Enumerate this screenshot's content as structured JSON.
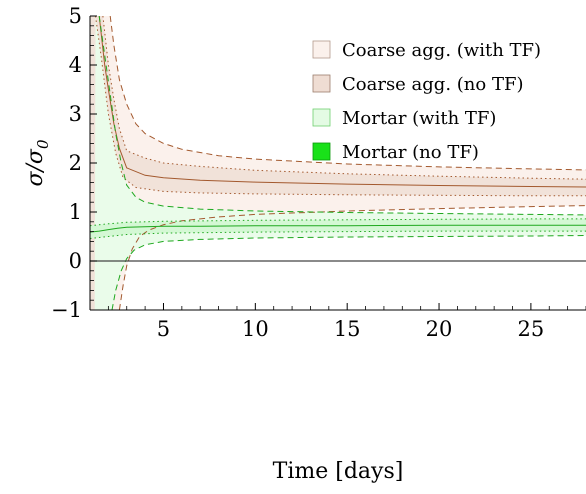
{
  "chart_data": {
    "type": "line",
    "title": "",
    "xlabel": "Time [days]",
    "ylabel": "σ/σ",
    "ylabel_sub": "0",
    "xlim": [
      1,
      28
    ],
    "ylim": [
      -1,
      5
    ],
    "xticks": [
      5,
      10,
      15,
      20,
      25
    ],
    "yticks": [
      -1,
      0,
      1,
      2,
      3,
      4,
      5
    ],
    "grid": false,
    "legend_position": "top-right",
    "legend": [
      {
        "label": "Coarse agg. (with TF)",
        "fill": "#fbf1ec",
        "stroke": "#b39a8c"
      },
      {
        "label": "Coarse agg. (no TF)",
        "fill": "#efddd3",
        "stroke": "#9b7e6c"
      },
      {
        "label": "Mortar (with TF)",
        "fill": "#e4fbe4",
        "stroke": "#6fcf6f"
      },
      {
        "label": "Mortar (no TF)",
        "fill": "#19e119",
        "stroke": "#0a9a0a"
      }
    ],
    "colors": {
      "coarse_line": "#a3592e",
      "coarse_band_outer": "#fbf1ec",
      "coarse_band_inner": "#f1e2d9",
      "mortar_line": "#1fa81f",
      "mortar_band_outer": "#eafcea",
      "mortar_band_inner": "#d4f8d4"
    },
    "series": [
      {
        "key": "coarse_mean",
        "style": "solid",
        "color": "coarse",
        "x": [
          1.5,
          1.8,
          2.0,
          2.3,
          2.6,
          3.0,
          4,
          5,
          7,
          10,
          15,
          20,
          25,
          28
        ],
        "y": [
          5.0,
          4.0,
          3.5,
          2.8,
          2.3,
          1.9,
          1.75,
          1.7,
          1.65,
          1.61,
          1.57,
          1.54,
          1.52,
          1.51
        ]
      },
      {
        "key": "coarse_no_tf_upper",
        "style": "dotted",
        "color": "coarse",
        "x": [
          1.7,
          2.0,
          2.3,
          2.6,
          3.0,
          4,
          5,
          7,
          10,
          15,
          20,
          25,
          28
        ],
        "y": [
          5.0,
          4.0,
          3.3,
          2.7,
          2.25,
          2.1,
          2.0,
          1.93,
          1.85,
          1.78,
          1.73,
          1.69,
          1.67
        ]
      },
      {
        "key": "coarse_no_tf_lower",
        "style": "dotted",
        "color": "coarse",
        "x": [
          1.3,
          1.6,
          2.0,
          2.4,
          2.8,
          3.5,
          5,
          7,
          10,
          15,
          20,
          25,
          28
        ],
        "y": [
          5.0,
          4.2,
          3.0,
          2.2,
          1.7,
          1.5,
          1.42,
          1.39,
          1.37,
          1.35,
          1.34,
          1.33,
          1.33
        ]
      },
      {
        "key": "coarse_with_tf_upper",
        "style": "dashed",
        "color": "coarse",
        "x": [
          2.1,
          2.3,
          2.6,
          3.0,
          3.5,
          4,
          5,
          6,
          8,
          10,
          15,
          20,
          25,
          28
        ],
        "y": [
          5.0,
          4.4,
          3.7,
          3.2,
          2.8,
          2.6,
          2.4,
          2.28,
          2.15,
          2.08,
          1.98,
          1.92,
          1.88,
          1.86
        ]
      },
      {
        "key": "coarse_with_tf_lower",
        "style": "dashed",
        "color": "coarse",
        "x": [
          2.6,
          2.8,
          3.0,
          3.3,
          3.7,
          4.2,
          5,
          6,
          8,
          10,
          15,
          20,
          25,
          28
        ],
        "y": [
          -1.0,
          -0.5,
          -0.1,
          0.25,
          0.5,
          0.63,
          0.74,
          0.82,
          0.9,
          0.95,
          1.02,
          1.07,
          1.11,
          1.13
        ]
      },
      {
        "key": "mortar_mean",
        "style": "solid",
        "color": "mortar",
        "x": [
          1.0,
          1.5,
          2.0,
          2.5,
          3.0,
          4,
          5,
          7,
          10,
          15,
          20,
          25,
          28
        ],
        "y": [
          0.59,
          0.61,
          0.64,
          0.67,
          0.69,
          0.7,
          0.71,
          0.71,
          0.72,
          0.72,
          0.73,
          0.73,
          0.73
        ]
      },
      {
        "key": "mortar_no_tf_upper",
        "style": "dotted",
        "color": "mortar",
        "x": [
          1.0,
          2.0,
          3.0,
          5,
          10,
          15,
          20,
          25,
          28
        ],
        "y": [
          0.72,
          0.76,
          0.79,
          0.81,
          0.83,
          0.84,
          0.85,
          0.86,
          0.86
        ]
      },
      {
        "key": "mortar_no_tf_lower",
        "style": "dotted",
        "color": "mortar",
        "x": [
          1.0,
          2.0,
          3.0,
          5,
          10,
          15,
          20,
          25,
          28
        ],
        "y": [
          0.46,
          0.5,
          0.54,
          0.57,
          0.59,
          0.6,
          0.61,
          0.61,
          0.61
        ]
      },
      {
        "key": "mortar_with_tf_upper",
        "style": "dashed",
        "color": "mortar",
        "x": [
          1.5,
          1.8,
          2.1,
          2.4,
          2.7,
          3.0,
          3.5,
          4,
          5,
          7,
          10,
          15,
          20,
          25,
          28
        ],
        "y": [
          5.0,
          4.2,
          3.4,
          2.6,
          2.0,
          1.55,
          1.3,
          1.2,
          1.12,
          1.06,
          1.02,
          0.99,
          0.97,
          0.95,
          0.94
        ]
      },
      {
        "key": "mortar_with_tf_lower",
        "style": "dashed",
        "color": "mortar",
        "x": [
          2.2,
          2.4,
          2.7,
          3.0,
          3.4,
          4,
          5,
          7,
          10,
          15,
          20,
          25,
          28
        ],
        "y": [
          -1.0,
          -0.6,
          -0.2,
          0.05,
          0.22,
          0.33,
          0.4,
          0.44,
          0.47,
          0.49,
          0.5,
          0.51,
          0.52
        ]
      }
    ],
    "bands": [
      {
        "key": "coarse_with_tf_band",
        "upper": "coarse_with_tf_upper",
        "lower": "coarse_with_tf_lower",
        "fill": "coarse_band_outer"
      },
      {
        "key": "mortar_with_tf_band",
        "upper": "mortar_with_tf_upper",
        "lower": "mortar_with_tf_lower",
        "fill": "mortar_band_outer"
      },
      {
        "key": "coarse_no_tf_band",
        "upper": "coarse_no_tf_upper",
        "lower": "coarse_no_tf_lower",
        "fill": "coarse_band_inner"
      },
      {
        "key": "mortar_no_tf_band",
        "upper": "mortar_no_tf_upper",
        "lower": "mortar_no_tf_lower",
        "fill": "mortar_band_inner"
      }
    ],
    "reference_line_y": 0
  }
}
